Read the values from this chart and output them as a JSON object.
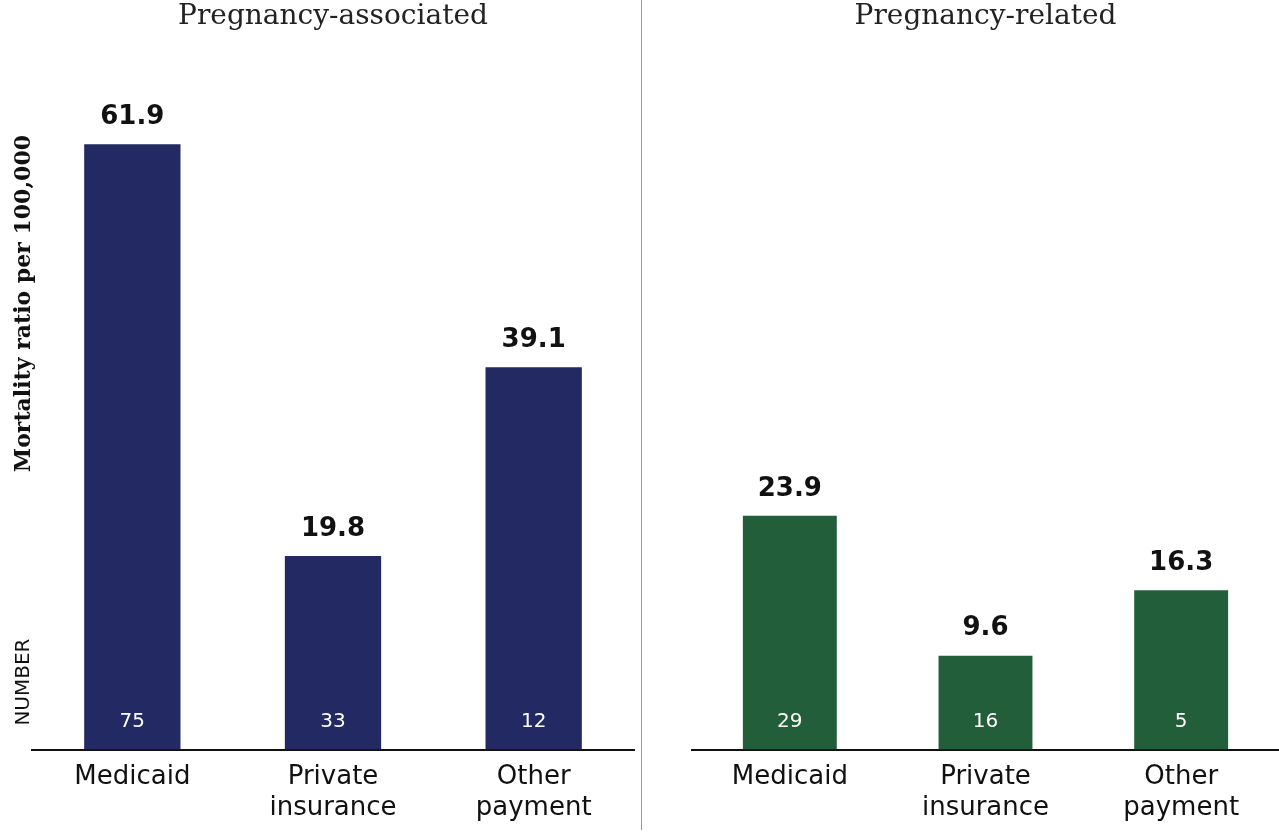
{
  "chart_data": [
    {
      "type": "bar",
      "title": "Pregnancy-associated",
      "ylabel": "Mortality ratio per 100,000",
      "categories": [
        "Medicaid",
        "Private insurance",
        "Other payment"
      ],
      "values": [
        61.9,
        19.8,
        39.1
      ],
      "color": "#232a63",
      "data_labels": true,
      "grid": false,
      "legend": false,
      "tick_labels": "x",
      "annotations": [
        "NUMBER",
        {
          "text": "75",
          "x": "Medicaid",
          "y": 0
        },
        {
          "text": "33",
          "x": "Private insurance",
          "y": 0
        },
        {
          "text": "12",
          "x": "Other payment",
          "y": 0
        }
      ]
    },
    {
      "type": "bar",
      "title": "Pregnancy-related",
      "categories": [
        "Medicaid",
        "Private insurance",
        "Other payment"
      ],
      "values": [
        23.9,
        9.6,
        16.3
      ],
      "color": "#235e3a",
      "data_labels": true,
      "grid": false,
      "legend": false,
      "tick_labels": "x",
      "annotations": [
        {
          "text": "29",
          "x": "Medicaid",
          "y": 0
        },
        {
          "text": "16",
          "x": "Private insurance",
          "y": 0
        },
        {
          "text": "5",
          "x": "Other payment",
          "y": 0
        }
      ]
    }
  ]
}
